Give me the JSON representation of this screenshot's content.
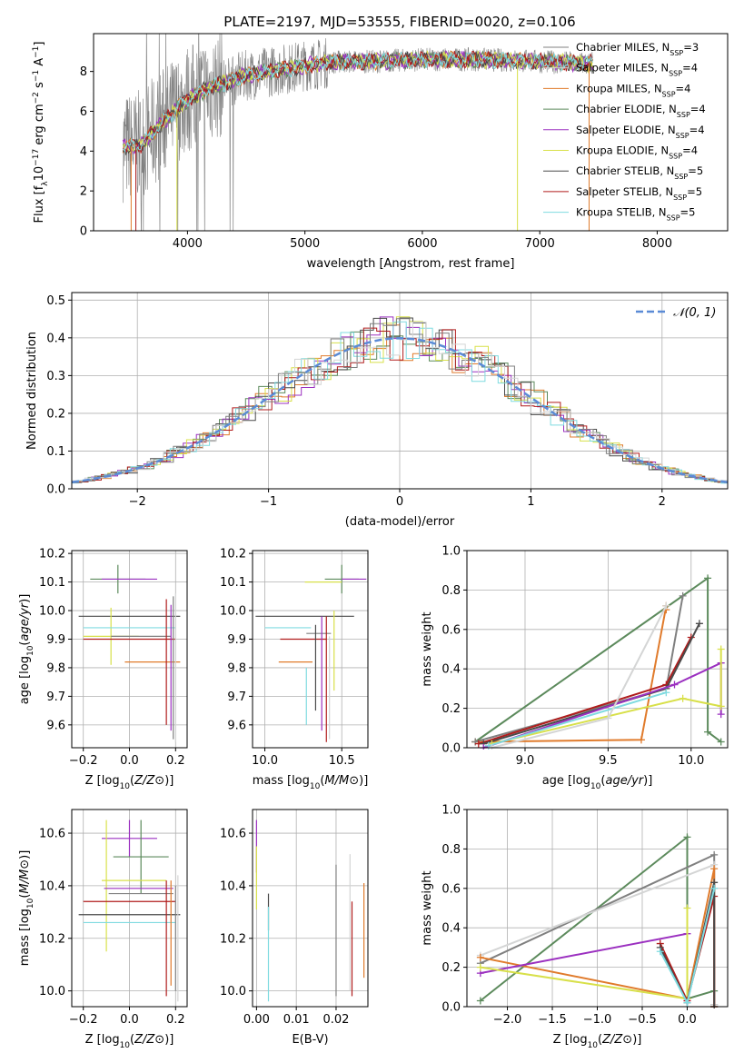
{
  "figure_title": "PLATE=2197, MJD=53555, FIBERID=0020, z=0.106",
  "model_colors": [
    "#808080",
    "#d4d5d5",
    "#e07b2c",
    "#5c8a5c",
    "#9b30c0",
    "#d8e04a",
    "#4a4a4a",
    "#b01c1c",
    "#7fdbe0"
  ],
  "legend": [
    {
      "text": "Chabrier MILES, N",
      "sub": "SSP",
      "n": "=3"
    },
    {
      "text": "Salpeter MILES, N",
      "sub": "SSP",
      "n": "=4"
    },
    {
      "text": "Kroupa MILES, N",
      "sub": "SSP",
      "n": "=4"
    },
    {
      "text": "Chabrier ELODIE, N",
      "sub": "SSP",
      "n": "=4"
    },
    {
      "text": "Salpeter ELODIE, N",
      "sub": "SSP",
      "n": "=4"
    },
    {
      "text": "Kroupa ELODIE, N",
      "sub": "SSP",
      "n": "=4"
    },
    {
      "text": "Chabrier STELIB, N",
      "sub": "SSP",
      "n": "=5"
    },
    {
      "text": "Salpeter STELIB, N",
      "sub": "SSP",
      "n": "=5"
    },
    {
      "text": "Kroupa STELIB, N",
      "sub": "SSP",
      "n": "=5"
    }
  ],
  "chart_data": [
    {
      "id": "spectrum",
      "type": "line",
      "title": "PLATE=2197, MJD=53555, FIBERID=0020, z=0.106",
      "xlabel": "wavelength [Angstrom, rest frame]",
      "ylabel": "Flux [f_λ10^-17 erg cm^-2 s^-1 A^-1]",
      "xlim": [
        3200,
        8600
      ],
      "ylim": [
        0,
        9.9
      ],
      "xticks": [
        4000,
        5000,
        6000,
        7000,
        8000
      ],
      "yticks": [
        0,
        2,
        4,
        6,
        8
      ],
      "continuum": {
        "x": [
          3450,
          3600,
          3800,
          4000,
          4200,
          4500,
          4800,
          5000,
          5300,
          5600,
          6000,
          6500,
          7000,
          7400
        ],
        "y": [
          4.2,
          4.3,
          5.5,
          6.6,
          7.2,
          7.8,
          8.1,
          8.3,
          8.5,
          8.5,
          8.6,
          8.6,
          8.5,
          8.4
        ]
      },
      "data_range": [
        3450,
        7450
      ],
      "grid": false,
      "legend_position": "top-right"
    },
    {
      "id": "residuals",
      "type": "bar",
      "xlabel": "(data-model)/error",
      "ylabel": "Normed distribution",
      "xlim": [
        -2.5,
        2.5
      ],
      "ylim": [
        0,
        0.52
      ],
      "xticks": [
        -2,
        -1,
        0,
        1,
        2
      ],
      "yticks": [
        0.0,
        0.1,
        0.2,
        0.3,
        0.4,
        0.5
      ],
      "series": [
        {
          "name": "𝒩(0, 1)",
          "style": "dashed",
          "color": "#5b8bd6",
          "mu": 0,
          "sigma": 1
        }
      ],
      "bin_width": 0.1,
      "grid": true,
      "legend_position": "top-right"
    },
    {
      "id": "age_vs_Z",
      "type": "scatter",
      "xlabel": "Z [log10(Z/Z⊙)]",
      "ylabel": "age  [log10(age/yr)]",
      "xlim": [
        -0.25,
        0.25
      ],
      "ylim": [
        9.52,
        10.21
      ],
      "xticks": [
        -0.2,
        0.0,
        0.2
      ],
      "yticks": [
        9.6,
        9.7,
        9.8,
        9.9,
        10.0,
        10.1,
        10.2
      ],
      "points": [
        {
          "x": 0.0,
          "y": 9.98,
          "xerr": 0.22,
          "yerr": 0.0,
          "c": 6
        },
        {
          "x": -0.05,
          "y": 10.11,
          "xerr": 0.12,
          "yerr": 0.05,
          "c": 3
        },
        {
          "x": 0.0,
          "y": 10.11,
          "xerr": 0.12,
          "yerr": 0.0,
          "c": 4
        },
        {
          "x": -0.08,
          "y": 9.91,
          "xerr": 0.12,
          "yerr": 0.1,
          "c": 5
        },
        {
          "x": 0.0,
          "y": 9.94,
          "xerr": 0.2,
          "yerr": 0.0,
          "c": 8
        },
        {
          "x": 0.05,
          "y": 9.91,
          "xerr": 0.13,
          "yerr": 0.0,
          "c": 0
        },
        {
          "x": 0.0,
          "y": 9.9,
          "xerr": 0.2,
          "yerr": 0.0,
          "c": 7
        },
        {
          "x": 0.1,
          "y": 9.82,
          "xerr": 0.12,
          "yerr": 0.0,
          "c": 2
        },
        {
          "x": 0.16,
          "y": 9.82,
          "xerr": 0.0,
          "yerr": 0.22,
          "c": 7
        },
        {
          "x": 0.18,
          "y": 9.8,
          "xerr": 0.0,
          "yerr": 0.22,
          "c": 4
        },
        {
          "x": 0.19,
          "y": 9.8,
          "xerr": 0.0,
          "yerr": 0.25,
          "c": 0
        },
        {
          "x": 0.2,
          "y": 9.8,
          "xerr": 0.0,
          "yerr": 0.26,
          "c": 1
        }
      ]
    },
    {
      "id": "age_vs_mass",
      "type": "scatter",
      "xlabel": "mass [log10(M/M⊙)]",
      "ylabel": "",
      "xlim": [
        9.92,
        10.67
      ],
      "ylim": [
        9.52,
        10.21
      ],
      "xticks": [
        10.0,
        10.5
      ],
      "yticks": [
        9.6,
        9.7,
        9.8,
        9.9,
        10.0,
        10.1,
        10.2
      ],
      "points": [
        {
          "x": 10.26,
          "y": 9.98,
          "xerr": 0.32,
          "yerr": 0.0,
          "c": 6
        },
        {
          "x": 10.5,
          "y": 10.11,
          "xerr": 0.11,
          "yerr": 0.05,
          "c": 3
        },
        {
          "x": 10.58,
          "y": 10.11,
          "xerr": 0.08,
          "yerr": 0.0,
          "c": 4
        },
        {
          "x": 10.38,
          "y": 10.1,
          "xerr": 0.12,
          "yerr": 0.0,
          "c": 5
        },
        {
          "x": 10.4,
          "y": 10.1,
          "xerr": 0.0,
          "yerr": 0.0,
          "c": 0
        },
        {
          "x": 10.15,
          "y": 9.94,
          "xerr": 0.15,
          "yerr": 0.0,
          "c": 8
        },
        {
          "x": 10.25,
          "y": 9.9,
          "xerr": 0.15,
          "yerr": 0.0,
          "c": 7
        },
        {
          "x": 10.35,
          "y": 9.92,
          "xerr": 0.08,
          "yerr": 0.0,
          "c": 0
        },
        {
          "x": 10.2,
          "y": 9.82,
          "xerr": 0.11,
          "yerr": 0.0,
          "c": 2
        },
        {
          "x": 10.33,
          "y": 9.8,
          "xerr": 0.0,
          "yerr": 0.15,
          "c": 6
        },
        {
          "x": 10.37,
          "y": 9.78,
          "xerr": 0.0,
          "yerr": 0.2,
          "c": 4
        },
        {
          "x": 10.4,
          "y": 9.76,
          "xerr": 0.0,
          "yerr": 0.22,
          "c": 7
        },
        {
          "x": 10.42,
          "y": 9.73,
          "xerr": 0.0,
          "yerr": 0.18,
          "c": 1
        },
        {
          "x": 10.45,
          "y": 9.86,
          "xerr": 0.0,
          "yerr": 0.14,
          "c": 5
        },
        {
          "x": 10.27,
          "y": 9.7,
          "xerr": 0.0,
          "yerr": 0.1,
          "c": 8
        }
      ]
    },
    {
      "id": "weight_vs_age",
      "type": "line",
      "xlabel": "age  [log10(age/yr)]",
      "ylabel": "mass weight",
      "xlim": [
        8.65,
        10.22
      ],
      "ylim": [
        0,
        1.0
      ],
      "xticks": [
        9.0,
        9.5,
        10.0
      ],
      "yticks": [
        0.0,
        0.2,
        0.4,
        0.6,
        0.8,
        1.0
      ],
      "grid": true,
      "series": [
        {
          "c": 3,
          "x": [
            8.7,
            10.1,
            10.1,
            10.18
          ],
          "y": [
            0.03,
            0.86,
            0.08,
            0.03
          ]
        },
        {
          "c": 2,
          "x": [
            8.7,
            9.7,
            9.85,
            9.85
          ],
          "y": [
            0.03,
            0.04,
            0.72,
            0.7
          ]
        },
        {
          "c": 0,
          "x": [
            8.7,
            9.85,
            9.95
          ],
          "y": [
            0.03,
            0.3,
            0.77
          ]
        },
        {
          "c": 7,
          "x": [
            8.72,
            9.85,
            10.0
          ],
          "y": [
            0.02,
            0.32,
            0.56
          ]
        },
        {
          "c": 6,
          "x": [
            8.75,
            9.85,
            10.05
          ],
          "y": [
            0.02,
            0.3,
            0.63
          ]
        },
        {
          "c": 4,
          "x": [
            8.75,
            9.9,
            10.18,
            10.18
          ],
          "y": [
            0.0,
            0.32,
            0.43,
            0.17
          ]
        },
        {
          "c": 5,
          "x": [
            8.8,
            9.95,
            10.18,
            10.18
          ],
          "y": [
            0.02,
            0.25,
            0.21,
            0.5
          ]
        },
        {
          "c": 8,
          "x": [
            8.78,
            9.85
          ],
          "y": [
            0.01,
            0.28
          ]
        },
        {
          "c": 1,
          "x": [
            8.8,
            9.5,
            9.85
          ],
          "y": [
            0.0,
            0.15,
            0.72
          ]
        }
      ]
    },
    {
      "id": "mass_vs_Z",
      "type": "scatter",
      "xlabel": "Z [log10(Z/Z⊙)]",
      "ylabel": "mass [log10(M/M⊙)]",
      "xlim": [
        -0.25,
        0.25
      ],
      "ylim": [
        9.94,
        10.69
      ],
      "xticks": [
        -0.2,
        0.0,
        0.2
      ],
      "yticks": [
        10.0,
        10.2,
        10.4,
        10.6
      ],
      "points": [
        {
          "x": 0.0,
          "y": 10.58,
          "xerr": 0.12,
          "yerr": 0.07,
          "c": 4
        },
        {
          "x": 0.05,
          "y": 10.51,
          "xerr": 0.12,
          "yerr": 0.14,
          "c": 3
        },
        {
          "x": 0.02,
          "y": 10.42,
          "xerr": 0.14,
          "yerr": 0.0,
          "c": 5
        },
        {
          "x": -0.1,
          "y": 10.4,
          "xerr": 0.0,
          "yerr": 0.25,
          "c": 5
        },
        {
          "x": 0.04,
          "y": 10.39,
          "xerr": 0.15,
          "yerr": 0.0,
          "c": 4
        },
        {
          "x": 0.05,
          "y": 10.37,
          "xerr": 0.14,
          "yerr": 0.0,
          "c": 0
        },
        {
          "x": 0.0,
          "y": 10.34,
          "xerr": 0.2,
          "yerr": 0.0,
          "c": 7
        },
        {
          "x": 0.0,
          "y": 10.29,
          "xerr": 0.22,
          "yerr": 0.0,
          "c": 6
        },
        {
          "x": 0.0,
          "y": 10.26,
          "xerr": 0.2,
          "yerr": 0.0,
          "c": 8
        },
        {
          "x": 0.16,
          "y": 10.2,
          "xerr": 0.0,
          "yerr": 0.22,
          "c": 7
        },
        {
          "x": 0.18,
          "y": 10.22,
          "xerr": 0.0,
          "yerr": 0.2,
          "c": 2
        },
        {
          "x": 0.2,
          "y": 10.2,
          "xerr": 0.0,
          "yerr": 0.2,
          "c": 0
        },
        {
          "x": 0.21,
          "y": 10.2,
          "xerr": 0.0,
          "yerr": 0.24,
          "c": 1
        }
      ]
    },
    {
      "id": "mass_vs_EBV",
      "type": "scatter",
      "xlabel": "E(B-V)",
      "ylabel": "",
      "xlim": [
        -0.001,
        0.028
      ],
      "ylim": [
        9.94,
        10.69
      ],
      "xticks": [
        0.0,
        0.01,
        0.02
      ],
      "yticks": [
        10.0,
        10.2,
        10.4,
        10.6
      ],
      "points": [
        {
          "x": 0.0,
          "y": 10.55,
          "xerr": 0,
          "yerr": 0.1,
          "c": 4
        },
        {
          "x": 0.0,
          "y": 10.43,
          "xerr": 0,
          "yerr": 0.12,
          "c": 5
        },
        {
          "x": 0.003,
          "y": 10.3,
          "xerr": 0,
          "yerr": 0.07,
          "c": 6
        },
        {
          "x": 0.003,
          "y": 10.14,
          "xerr": 0,
          "yerr": 0.18,
          "c": 8
        },
        {
          "x": 0.02,
          "y": 10.23,
          "xerr": 0,
          "yerr": 0.25,
          "c": 0
        },
        {
          "x": 0.0235,
          "y": 10.26,
          "xerr": 0,
          "yerr": 0.26,
          "c": 1
        },
        {
          "x": 0.024,
          "y": 10.16,
          "xerr": 0,
          "yerr": 0.18,
          "c": 7
        },
        {
          "x": 0.027,
          "y": 10.23,
          "xerr": 0,
          "yerr": 0.18,
          "c": 2
        }
      ]
    },
    {
      "id": "weight_vs_Z",
      "type": "line",
      "xlabel": "Z [log10(Z/Z⊙)]",
      "ylabel": "mass weight",
      "xlim": [
        -2.45,
        0.45
      ],
      "ylim": [
        0,
        1.0
      ],
      "xticks": [
        -2.0,
        -1.5,
        -1.0,
        -0.5,
        0.0
      ],
      "yticks": [
        0.0,
        0.2,
        0.4,
        0.6,
        0.8,
        1.0
      ],
      "grid": true,
      "series": [
        {
          "c": 3,
          "x": [
            -2.3,
            0.0,
            0.0,
            0.3,
            0.3
          ],
          "y": [
            0.03,
            0.86,
            0.04,
            0.08,
            0.0
          ]
        },
        {
          "c": 0,
          "x": [
            -2.3,
            0.3,
            0.3
          ],
          "y": [
            0.22,
            0.77,
            0.01
          ]
        },
        {
          "c": 1,
          "x": [
            -2.3,
            0.3,
            0.3
          ],
          "y": [
            0.26,
            0.72,
            0.01
          ]
        },
        {
          "c": 2,
          "x": [
            -2.3,
            0.0,
            0.3,
            0.3
          ],
          "y": [
            0.25,
            0.04,
            0.7,
            0.0
          ]
        },
        {
          "c": 4,
          "x": [
            -2.3,
            0.0,
            0.0
          ],
          "y": [
            0.17,
            0.37,
            0.03
          ]
        },
        {
          "c": 5,
          "x": [
            -2.3,
            0.0,
            0.0
          ],
          "y": [
            0.2,
            0.04,
            0.5
          ]
        },
        {
          "c": 7,
          "x": [
            -0.3,
            0.0,
            0.3,
            0.3
          ],
          "y": [
            0.32,
            0.03,
            0.56,
            0.0
          ]
        },
        {
          "c": 6,
          "x": [
            -0.3,
            0.0,
            0.3,
            0.3
          ],
          "y": [
            0.3,
            0.02,
            0.63,
            0.0
          ]
        },
        {
          "c": 8,
          "x": [
            -0.3,
            0.0,
            0.3
          ],
          "y": [
            0.28,
            0.02,
            0.6
          ]
        }
      ]
    }
  ]
}
